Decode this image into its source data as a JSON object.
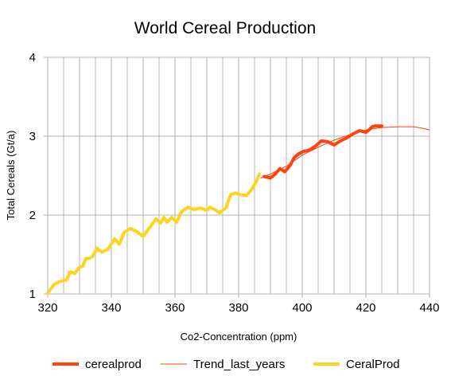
{
  "chart_data": {
    "type": "line",
    "title": "World Cereal Production",
    "xlabel": "Co2-Concentration (ppm)",
    "ylabel": "Total Cereals (Gt/a)",
    "xlim": [
      320,
      440
    ],
    "ylim": [
      1,
      4
    ],
    "xticks": [
      "320",
      "340",
      "360",
      "380",
      "400",
      "420",
      "440"
    ],
    "yticks": [
      "1",
      "2",
      "3",
      "4"
    ],
    "grid": {
      "vertical": true,
      "horizontal": true
    },
    "legend_position": "bottom",
    "series": [
      {
        "name": "cerealprod",
        "color": "#ff420e",
        "style": "thick",
        "x": [
          388,
          390,
          391.5,
          393,
          394.5,
          396,
          397.5,
          399,
          400.5,
          402,
          404,
          406,
          408,
          410,
          412,
          414,
          416,
          418,
          420,
          421,
          422,
          423,
          425
        ],
        "y": [
          2.49,
          2.47,
          2.52,
          2.59,
          2.55,
          2.62,
          2.73,
          2.78,
          2.81,
          2.82,
          2.87,
          2.94,
          2.93,
          2.89,
          2.94,
          2.98,
          3.03,
          3.07,
          3.05,
          3.08,
          3.12,
          3.13,
          3.13
        ]
      },
      {
        "name": "Trend_last_years",
        "color": "#ff420e",
        "style": "thin",
        "x": [
          387,
          390,
          395,
          400,
          405,
          410,
          415,
          420,
          425,
          430,
          435,
          438,
          440
        ],
        "y": [
          2.47,
          2.52,
          2.62,
          2.76,
          2.86,
          2.95,
          3.02,
          3.08,
          3.11,
          3.12,
          3.12,
          3.1,
          3.08
        ]
      },
      {
        "name": "CeralProd",
        "color": "#ffd320",
        "style": "thick",
        "x": [
          320,
          322,
          324,
          326,
          327,
          328.5,
          330,
          331,
          332,
          333,
          334,
          335.5,
          337,
          339,
          341,
          342.5,
          344,
          346,
          348,
          350,
          352,
          354,
          355.5,
          356.5,
          357.5,
          359,
          360.5,
          362,
          364,
          366,
          368,
          370,
          371,
          372.5,
          374,
          376,
          377.5,
          379,
          380.5,
          382.5,
          384,
          385.5,
          386.5
        ],
        "y": [
          1.01,
          1.12,
          1.16,
          1.18,
          1.28,
          1.26,
          1.34,
          1.35,
          1.45,
          1.45,
          1.47,
          1.58,
          1.53,
          1.57,
          1.7,
          1.63,
          1.78,
          1.83,
          1.79,
          1.73,
          1.84,
          1.95,
          1.9,
          1.97,
          1.91,
          1.97,
          1.91,
          2.04,
          2.1,
          2.07,
          2.09,
          2.06,
          2.1,
          2.07,
          2.03,
          2.09,
          2.26,
          2.28,
          2.26,
          2.25,
          2.32,
          2.42,
          2.52
        ]
      }
    ]
  }
}
